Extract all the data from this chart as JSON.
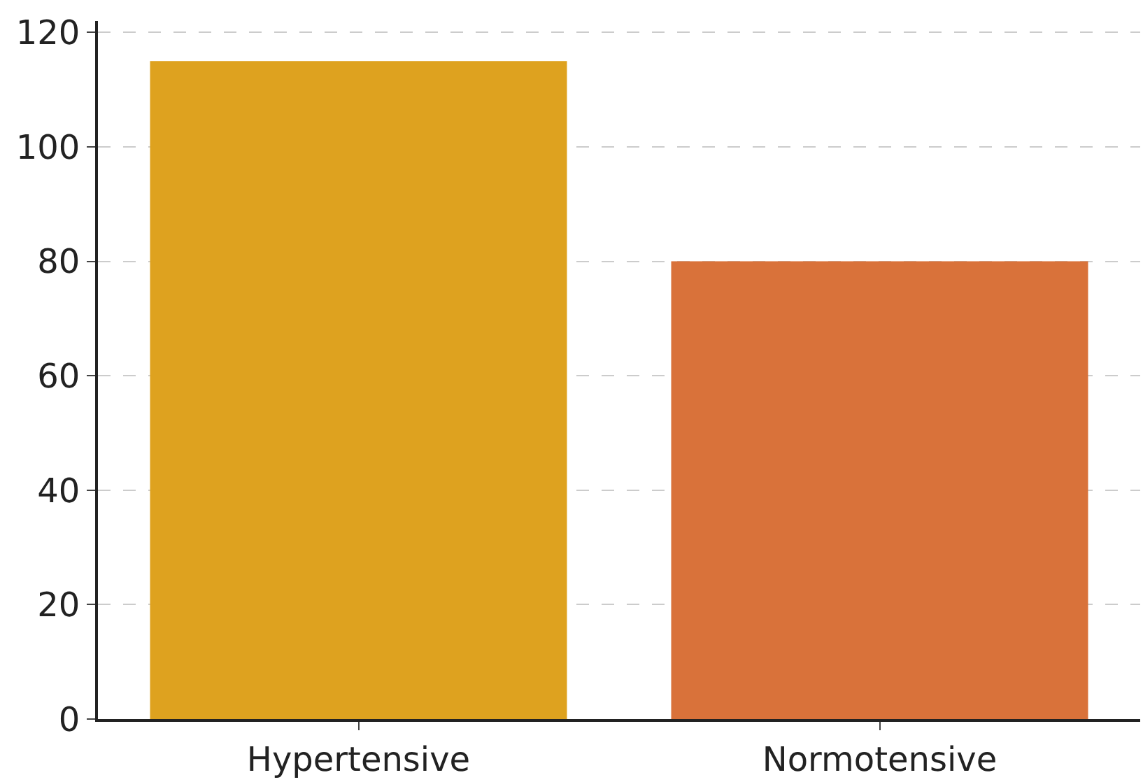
{
  "chart_data": {
    "type": "bar",
    "categories": [
      "Hypertensive",
      "Normotensive"
    ],
    "values": [
      115,
      80
    ],
    "colors": [
      "#dea21f",
      "#d9723a"
    ],
    "ylim": [
      0,
      122
    ],
    "yticks": [
      0,
      20,
      40,
      60,
      80,
      100,
      120
    ],
    "grid": "y"
  }
}
